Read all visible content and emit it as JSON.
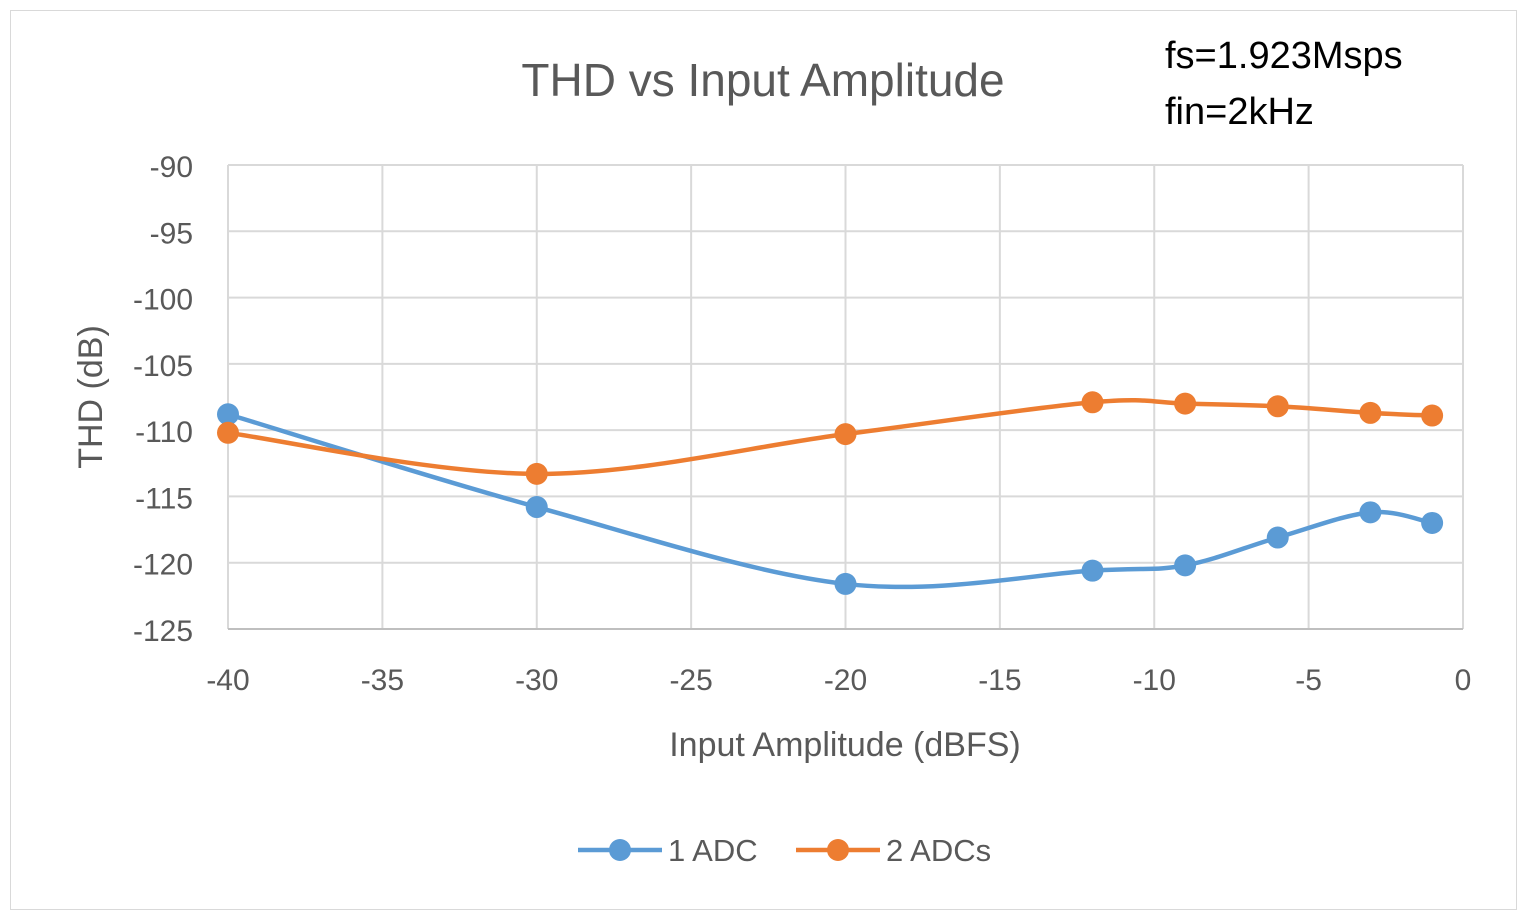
{
  "chart_data": {
    "type": "line",
    "title": "THD vs Input Amplitude",
    "annotations": [
      "fs=1.923Msps",
      "fin=2kHz"
    ],
    "xlabel": "Input Amplitude (dBFS)",
    "ylabel": "THD (dB)",
    "xlim": [
      -40,
      0
    ],
    "ylim": [
      -125,
      -90
    ],
    "xticks": [
      -40,
      -35,
      -30,
      -25,
      -20,
      -15,
      -10,
      -5,
      0
    ],
    "yticks": [
      -90,
      -95,
      -100,
      -105,
      -110,
      -115,
      -120,
      -125
    ],
    "grid": true,
    "smooth": true,
    "legend": "bottom",
    "x": [
      -40,
      -30,
      -20,
      -12,
      -9,
      -6,
      -3,
      -1
    ],
    "series": [
      {
        "name": "1 ADC",
        "color": "#5B9BD5",
        "values": [
          -108.8,
          -115.8,
          -121.6,
          -120.6,
          -120.2,
          -118.1,
          -116.2,
          -117.0
        ]
      },
      {
        "name": "2 ADCs",
        "color": "#ED7D31",
        "values": [
          -110.2,
          -113.3,
          -110.3,
          -107.9,
          -108.0,
          -108.2,
          -108.7,
          -108.9
        ]
      }
    ]
  }
}
